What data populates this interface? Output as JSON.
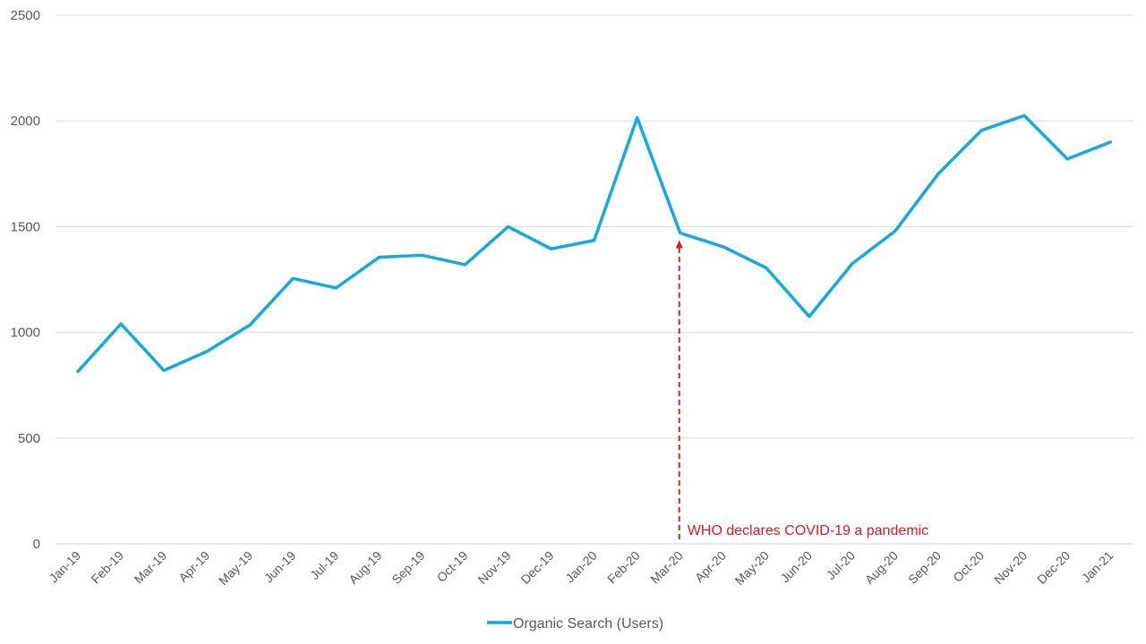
{
  "chart_data": {
    "type": "line",
    "categories": [
      "Jan-19",
      "Feb-19",
      "Mar-19",
      "Apr-19",
      "May-19",
      "Jun-19",
      "Jul-19",
      "Aug-19",
      "Sep-19",
      "Oct-19",
      "Nov-19",
      "Dec-19",
      "Jan-20",
      "Feb-20",
      "Mar-20",
      "Apr-20",
      "May-20",
      "Jun-20",
      "Jul-20",
      "Aug-20",
      "Sep-20",
      "Oct-20",
      "Nov-20",
      "Dec-20",
      "Jan-21"
    ],
    "series": [
      {
        "name": "Organic Search (Users)",
        "color": "#14A9E1",
        "values": [
          815,
          1040,
          820,
          910,
          1035,
          1255,
          1210,
          1355,
          1365,
          1320,
          1500,
          1395,
          1435,
          2015,
          1470,
          1405,
          1305,
          1075,
          1325,
          1480,
          1750,
          1955,
          2025,
          1820,
          1900
        ]
      }
    ],
    "yticks": [
      "0",
      "500",
      "1000",
      "1500",
      "2000",
      "2500"
    ],
    "ylim": [
      0,
      2500
    ],
    "grid": true,
    "legend_position": "bottom",
    "annotation": {
      "text": "WHO declares COVID-19 a pandemic",
      "category": "Mar-20",
      "value": 1470,
      "color": "#E0191F"
    }
  }
}
